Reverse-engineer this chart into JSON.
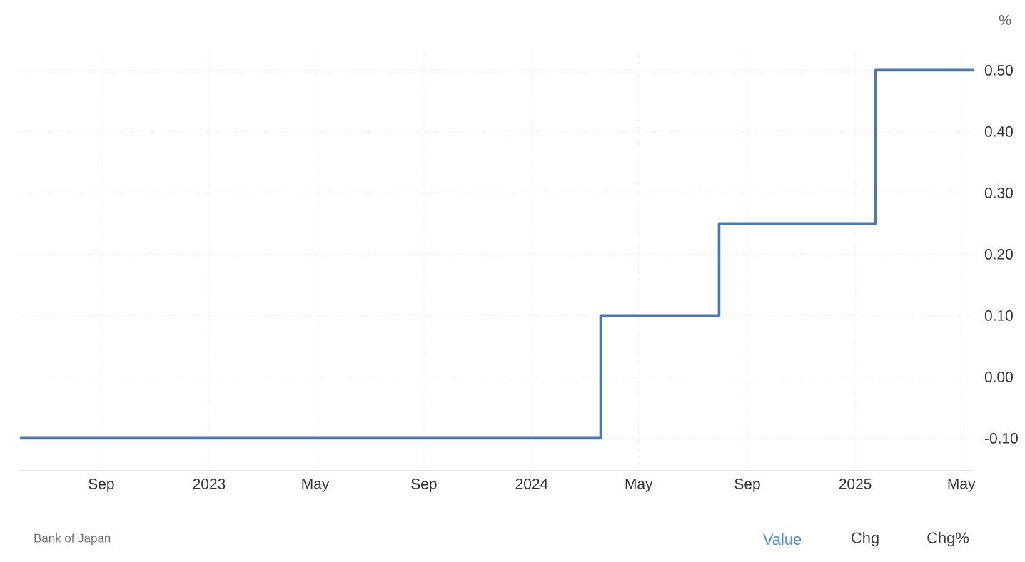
{
  "chart_data": {
    "type": "step",
    "ylabel": "%",
    "x": [
      "2022-06-01",
      "2024-03-19",
      "2024-07-31",
      "2025-01-24",
      "2025-05-15"
    ],
    "series": [
      {
        "color": "#4a78b5",
        "values": [
          -0.1,
          0.1,
          0.25,
          0.5,
          0.5
        ]
      }
    ],
    "xlim": [
      "2022-06-01",
      "2025-05-15"
    ],
    "xticks": [
      {
        "value": "2022-09-01",
        "label": "Sep"
      },
      {
        "value": "2023-01-01",
        "label": "2023"
      },
      {
        "value": "2023-05-01",
        "label": "May"
      },
      {
        "value": "2023-09-01",
        "label": "Sep"
      },
      {
        "value": "2024-01-01",
        "label": "2024"
      },
      {
        "value": "2024-05-01",
        "label": "May"
      },
      {
        "value": "2024-09-01",
        "label": "Sep"
      },
      {
        "value": "2025-01-01",
        "label": "2025"
      },
      {
        "value": "2025-05-01",
        "label": "May"
      }
    ],
    "ylim": [
      -0.153,
      0.533
    ],
    "yticks": [
      {
        "value": -0.1,
        "label": "-0.10"
      },
      {
        "value": 0,
        "label": "0.00"
      },
      {
        "value": 0.1,
        "label": "0.10"
      },
      {
        "value": 0.2,
        "label": "0.20"
      },
      {
        "value": 0.3,
        "label": "0.30"
      },
      {
        "value": 0.4,
        "label": "0.40"
      },
      {
        "value": 0.5,
        "label": "0.50"
      }
    ],
    "grid": true,
    "annotations": [
      "Bank of Japan",
      "Value",
      "Chg",
      "Chg%"
    ]
  }
}
